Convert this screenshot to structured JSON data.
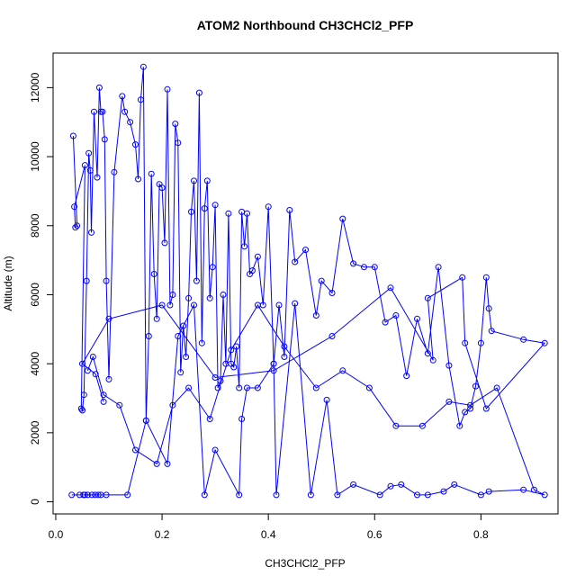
{
  "chart_data": {
    "type": "line",
    "title": "ATOM2 Northbound CH3CHCl2_PFP",
    "xlabel": "CH3CHCl2_PFP",
    "ylabel": "Altitude (m)",
    "xlim": [
      -0.005,
      0.945
    ],
    "ylim": [
      -350,
      13000
    ],
    "xticks": [
      0.0,
      0.2,
      0.4,
      0.6,
      0.8
    ],
    "xtick_labels": [
      "0.0",
      "0.2",
      "0.4",
      "0.6",
      "0.8"
    ],
    "yticks": [
      0,
      2000,
      4000,
      6000,
      8000,
      10000,
      12000
    ],
    "ytick_labels": [
      "0",
      "2000",
      "4000",
      "6000",
      "8000",
      "10000",
      "12000"
    ],
    "grid": false,
    "legend": "none",
    "series_color": "#0000ff",
    "series": [
      {
        "x": [
          0.033,
          0.04,
          0.037,
          0.035,
          0.055,
          0.048,
          0.05,
          0.053,
          0.058,
          0.062,
          0.065,
          0.067,
          0.072,
          0.078,
          0.082,
          0.085,
          0.088,
          0.092,
          0.095,
          0.1,
          0.11,
          0.125,
          0.13,
          0.14,
          0.15,
          0.155,
          0.16,
          0.165,
          0.17,
          0.175,
          0.18,
          0.185,
          0.19,
          0.195,
          0.2,
          0.205,
          0.21,
          0.215,
          0.22,
          0.225,
          0.23,
          0.235,
          0.24,
          0.245,
          0.25,
          0.255,
          0.26,
          0.265,
          0.27,
          0.275,
          0.28,
          0.285,
          0.29,
          0.295,
          0.3,
          0.305,
          0.31,
          0.315,
          0.32,
          0.325,
          0.33,
          0.335,
          0.34,
          0.345,
          0.35,
          0.355,
          0.36,
          0.365,
          0.37,
          0.38,
          0.39,
          0.4,
          0.41,
          0.42,
          0.43,
          0.44,
          0.45,
          0.47,
          0.49,
          0.5,
          0.52,
          0.54,
          0.56,
          0.58,
          0.6,
          0.62,
          0.64,
          0.66,
          0.68,
          0.7,
          0.72,
          0.74,
          0.76,
          0.77,
          0.78,
          0.79,
          0.8,
          0.81,
          0.815,
          0.82,
          0.88,
          0.92,
          0.81,
          0.77,
          0.765,
          0.7,
          0.71,
          0.63,
          0.52,
          0.41,
          0.3,
          0.2,
          0.1,
          0.05,
          0.075,
          0.09
        ],
        "y": [
          10600,
          8000,
          7950,
          8550,
          9750,
          2700,
          2650,
          3100,
          6400,
          10100,
          9600,
          7800,
          11300,
          9400,
          12000,
          11300,
          11300,
          10500,
          6400,
          3550,
          9550,
          11750,
          11300,
          11000,
          10350,
          9350,
          11650,
          12600,
          2350,
          4800,
          9500,
          6600,
          5300,
          9200,
          9100,
          7500,
          11950,
          5700,
          6000,
          10950,
          10400,
          3750,
          5100,
          4200,
          5900,
          8400,
          9300,
          6400,
          11850,
          4600,
          8500,
          9300,
          5900,
          6800,
          8600,
          3300,
          3500,
          6000,
          4000,
          8350,
          4000,
          3900,
          4500,
          3300,
          8400,
          7400,
          8350,
          6600,
          6700,
          7100,
          5700,
          8550,
          4000,
          5700,
          4200,
          8450,
          6950,
          7300,
          5400,
          6400,
          6050,
          8200,
          6900,
          6800,
          6800,
          5200,
          5400,
          3650,
          5300,
          4300,
          6800,
          3950,
          2200,
          2600,
          2700,
          3350,
          4600,
          6500,
          5600,
          4950,
          4700,
          4600,
          2700,
          4600,
          6500,
          5900,
          4100,
          6200,
          4800,
          3800,
          3600,
          5700,
          5300,
          4000,
          3700,
          2900
        ]
      },
      {
        "x": [
          0.03,
          0.045,
          0.052,
          0.055,
          0.06,
          0.068,
          0.074,
          0.08,
          0.085,
          0.095,
          0.135,
          0.17,
          0.21,
          0.23,
          0.26,
          0.28,
          0.3,
          0.345,
          0.35,
          0.36,
          0.38,
          0.41,
          0.415,
          0.45,
          0.48,
          0.51,
          0.53,
          0.56,
          0.61,
          0.63,
          0.65,
          0.68,
          0.7,
          0.73,
          0.75,
          0.8,
          0.815,
          0.88,
          0.92,
          0.9,
          0.83,
          0.78,
          0.74,
          0.69,
          0.64,
          0.59,
          0.54,
          0.49,
          0.43,
          0.38,
          0.33,
          0.29,
          0.25,
          0.22,
          0.19,
          0.15,
          0.12,
          0.09,
          0.07,
          0.06
        ],
        "y": [
          200,
          200,
          200,
          200,
          200,
          200,
          200,
          200,
          200,
          200,
          200,
          2350,
          1100,
          4800,
          5700,
          200,
          1500,
          200,
          2400,
          3300,
          3300,
          4000,
          200,
          5750,
          200,
          2950,
          200,
          500,
          200,
          450,
          500,
          200,
          200,
          300,
          500,
          200,
          300,
          350,
          200,
          350,
          3300,
          2800,
          2900,
          2200,
          2200,
          3300,
          3800,
          3300,
          4500,
          5700,
          4400,
          2400,
          3300,
          2800,
          1100,
          1500,
          2800,
          3100,
          4200,
          3800
        ]
      }
    ]
  }
}
